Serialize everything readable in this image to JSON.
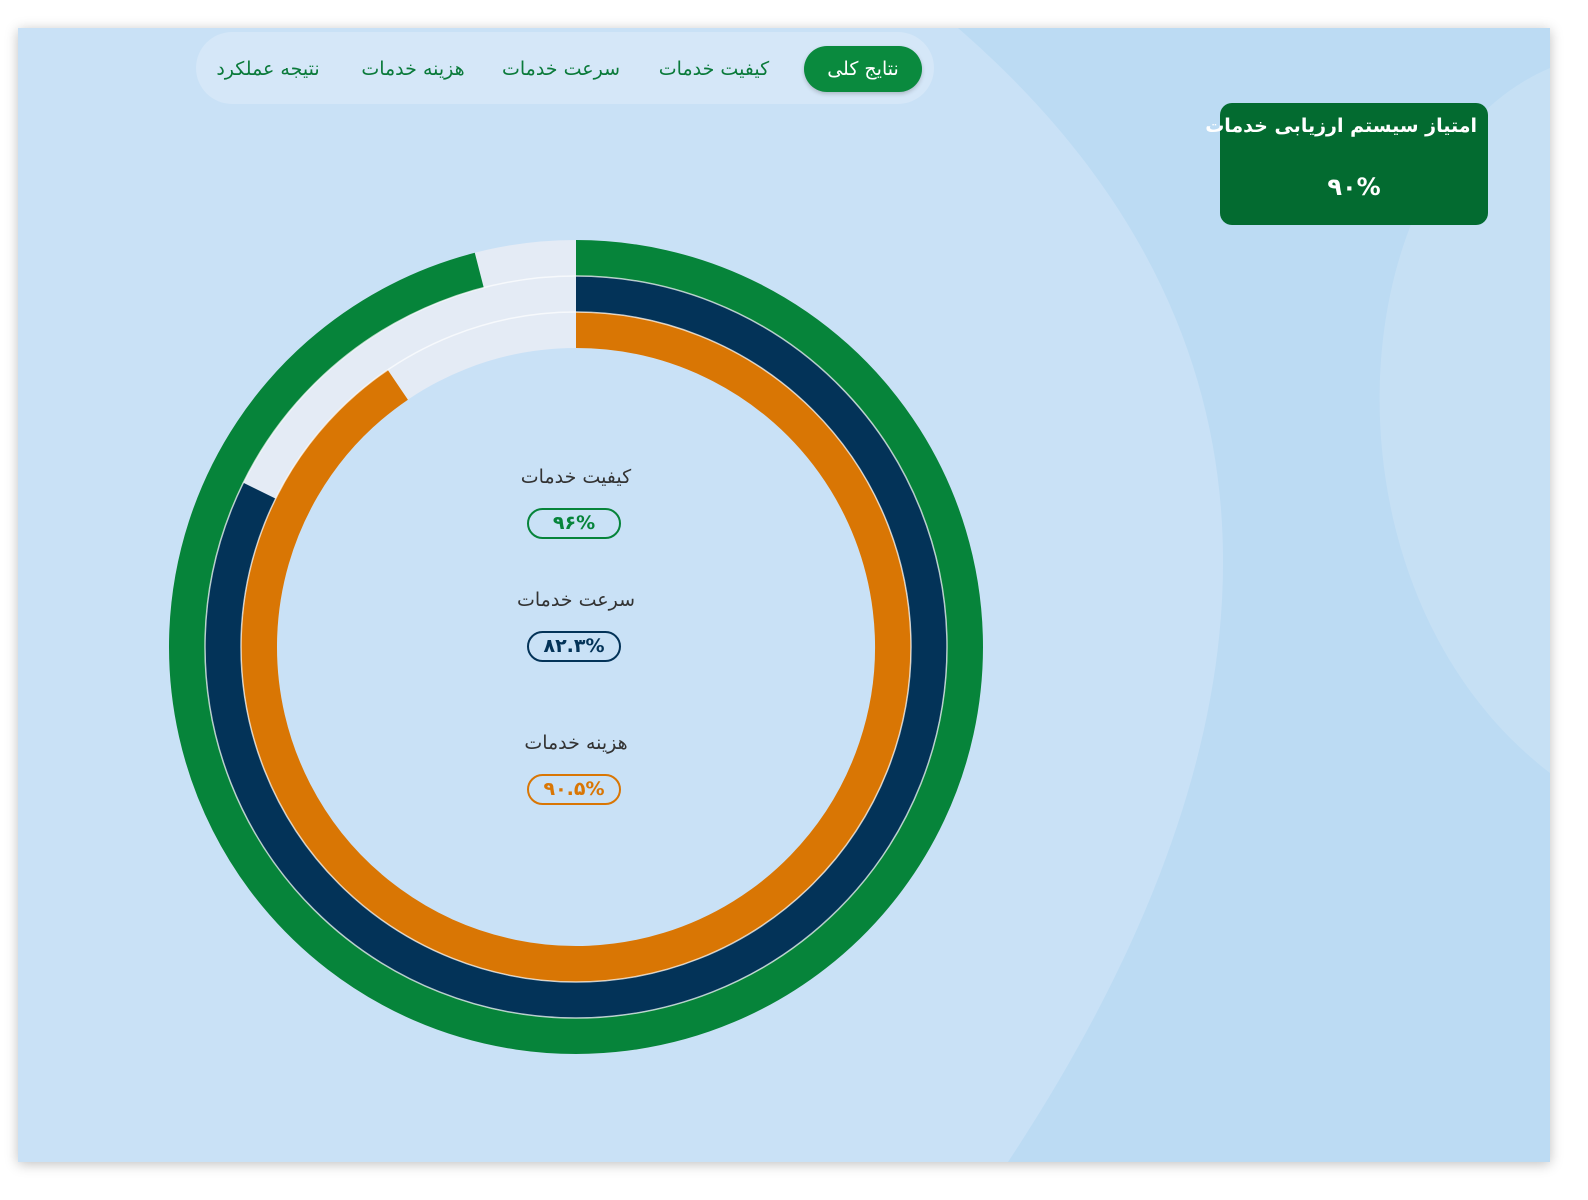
{
  "tabs": [
    {
      "label": "نتایج کلی",
      "active": true
    },
    {
      "label": "کیفیت خدمات",
      "active": false
    },
    {
      "label": "سرعت خدمات",
      "active": false
    },
    {
      "label": "هزینه خدمات",
      "active": false
    },
    {
      "label": "نتیجه عملکرد",
      "active": false
    }
  ],
  "score_card": {
    "title": "امتیاز سیستم ارزیابی خدمات",
    "value": "۹۰%"
  },
  "colors": {
    "quality": "#06843a",
    "speed": "#033358",
    "cost": "#d97604",
    "track": "#e4ebf5",
    "background": "#c9e1f6",
    "card": "#036b30"
  },
  "chart_data": {
    "type": "radial-bar",
    "series": [
      {
        "name": "کیفیت خدمات",
        "value": 96,
        "label": "۹۶%",
        "color": "#06843a"
      },
      {
        "name": "سرعت خدمات",
        "value": 82.3,
        "label": "۸۲.۳%",
        "color": "#033358"
      },
      {
        "name": "هزینه خدمات",
        "value": 90.5,
        "label": "۹۰.۵%",
        "color": "#d97604"
      }
    ],
    "max": 100
  }
}
